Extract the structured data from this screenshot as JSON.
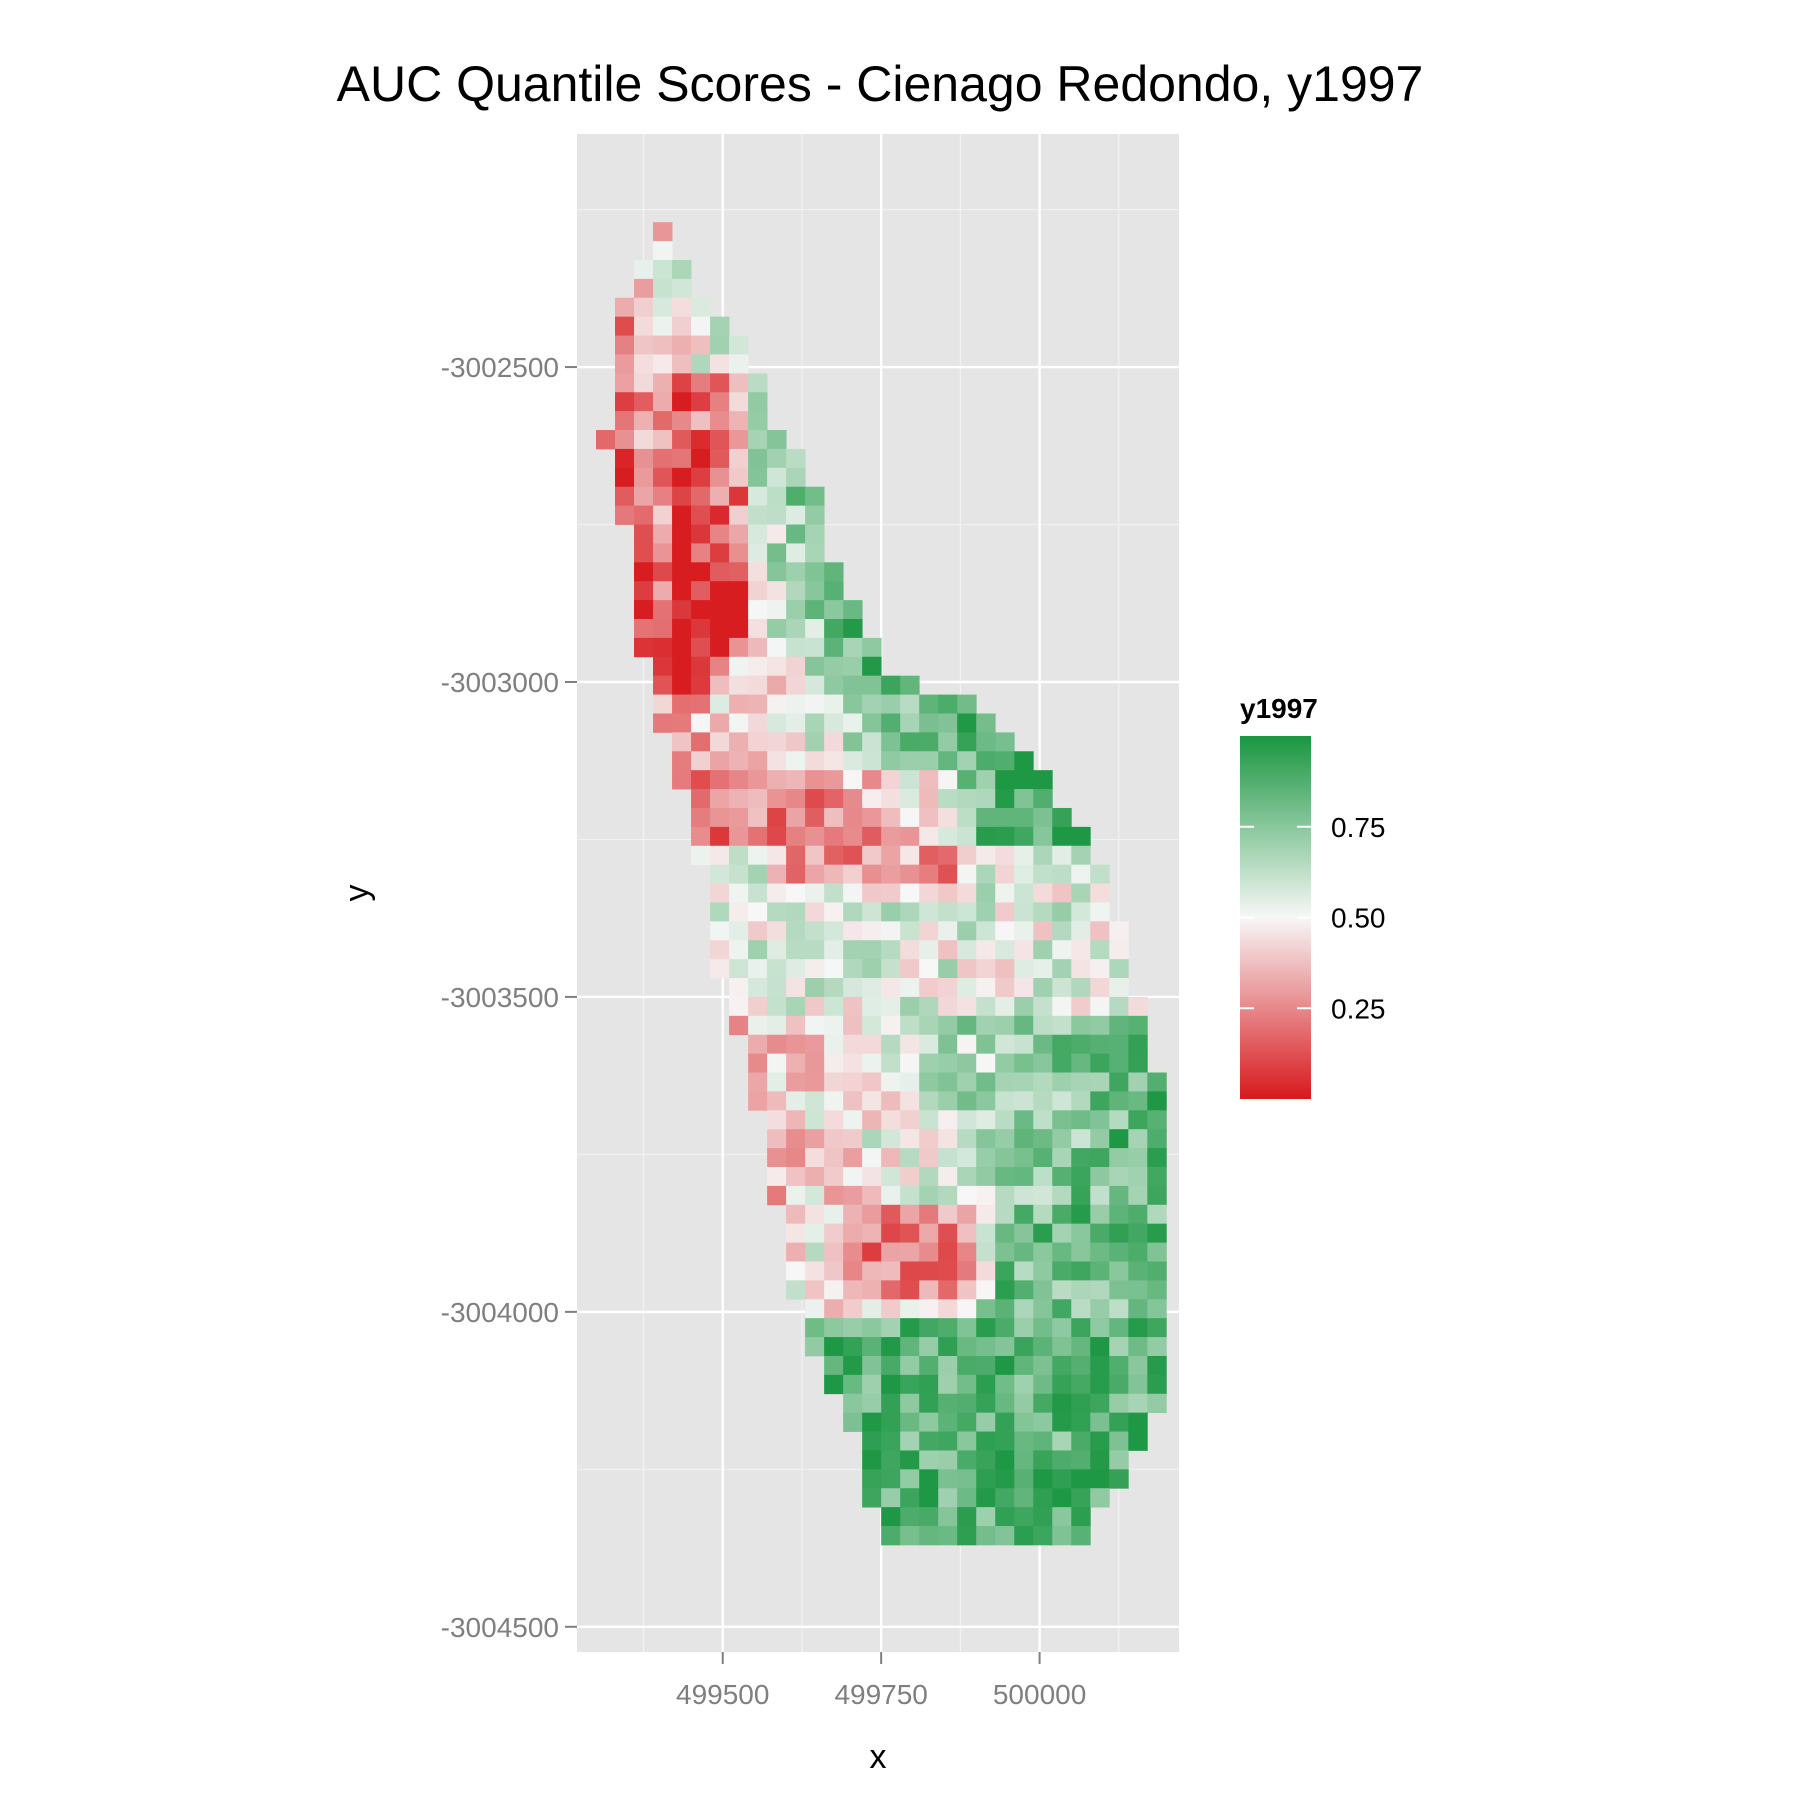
{
  "chart_data": {
    "type": "heatmap",
    "title": "AUC Quantile Scores - Cienago Redondo, y1997",
    "xlabel": "x",
    "ylabel": "y",
    "xlim": [
      499270,
      500220
    ],
    "ylim": [
      -3004540,
      -3002130
    ],
    "x_ticks": [
      499500,
      499750,
      500000
    ],
    "x_tick_labels": [
      "499500",
      "499750",
      "500000"
    ],
    "y_ticks": [
      -3002500,
      -3003000,
      -3003500,
      -3004000,
      -3004500
    ],
    "y_tick_labels": [
      "-3002500",
      "-3003000",
      "-3003500",
      "-3004000",
      "-3004500"
    ],
    "grid": true,
    "legend": {
      "title": "y1997",
      "placement": "right",
      "range": [
        0.0,
        1.0
      ],
      "breaks": [
        0.75,
        0.5,
        0.25
      ],
      "break_labels": [
        "0.75",
        "0.50",
        "0.25"
      ],
      "colors": {
        "low": "#d7191c",
        "mid": "#f7f7f7",
        "high": "#1a9641"
      }
    },
    "cell_size": 30,
    "x_origin": 499300,
    "y_origin": -3002270,
    "row_extents": [
      [
        3,
        3
      ],
      [
        3,
        3
      ],
      [
        2,
        4
      ],
      [
        2,
        4
      ],
      [
        1,
        5
      ],
      [
        1,
        6
      ],
      [
        1,
        7
      ],
      [
        1,
        7
      ],
      [
        1,
        8
      ],
      [
        1,
        8
      ],
      [
        1,
        8
      ],
      [
        0,
        9
      ],
      [
        1,
        10
      ],
      [
        1,
        10
      ],
      [
        1,
        11
      ],
      [
        1,
        11
      ],
      [
        2,
        11
      ],
      [
        2,
        11
      ],
      [
        2,
        12
      ],
      [
        2,
        12
      ],
      [
        2,
        13
      ],
      [
        2,
        13
      ],
      [
        2,
        14
      ],
      [
        3,
        14
      ],
      [
        3,
        16
      ],
      [
        3,
        19
      ],
      [
        3,
        20
      ],
      [
        4,
        21
      ],
      [
        4,
        22
      ],
      [
        4,
        23
      ],
      [
        5,
        23
      ],
      [
        5,
        24
      ],
      [
        5,
        25
      ],
      [
        5,
        25
      ],
      [
        6,
        26
      ],
      [
        6,
        26
      ],
      [
        6,
        26
      ],
      [
        6,
        27
      ],
      [
        6,
        27
      ],
      [
        6,
        27
      ],
      [
        7,
        27
      ],
      [
        7,
        28
      ],
      [
        7,
        28
      ],
      [
        8,
        28
      ],
      [
        8,
        28
      ],
      [
        8,
        29
      ],
      [
        8,
        29
      ],
      [
        9,
        29
      ],
      [
        9,
        29
      ],
      [
        9,
        29
      ],
      [
        9,
        29
      ],
      [
        9,
        29
      ],
      [
        10,
        29
      ],
      [
        10,
        29
      ],
      [
        10,
        29
      ],
      [
        10,
        29
      ],
      [
        10,
        29
      ],
      [
        11,
        29
      ],
      [
        11,
        29
      ],
      [
        11,
        29
      ],
      [
        12,
        29
      ],
      [
        12,
        29
      ],
      [
        13,
        29
      ],
      [
        13,
        28
      ],
      [
        14,
        28
      ],
      [
        14,
        27
      ],
      [
        14,
        27
      ],
      [
        14,
        26
      ],
      [
        15,
        25
      ],
      [
        15,
        25
      ]
    ],
    "notes": "Cells are 30 m raster pixels; y1997 score at each cell ranges 0–1, low (red) values concentrated along the north-western strip and mid-southern band, high (green) values in the south-east."
  }
}
